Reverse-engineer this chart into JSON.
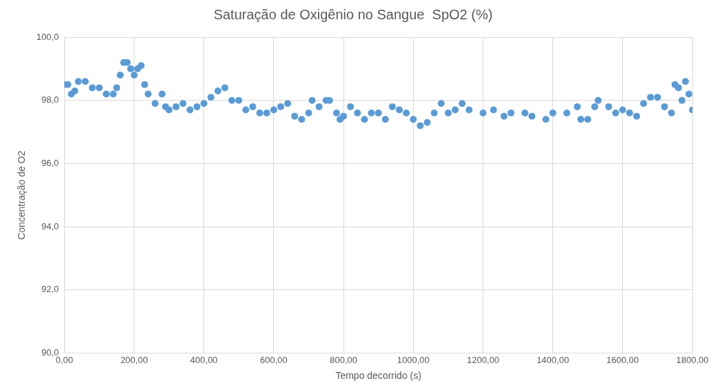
{
  "chart_data": {
    "type": "scatter",
    "title": "Saturação de Oxigênio no Sangue  SpO2 (%)",
    "xlabel": "Tempo decorrido (s)",
    "ylabel": "Concentração de O2",
    "x": [
      0,
      10,
      20,
      30,
      40,
      60,
      80,
      100,
      120,
      140,
      150,
      160,
      170,
      180,
      190,
      200,
      210,
      220,
      230,
      240,
      260,
      280,
      290,
      300,
      320,
      340,
      360,
      380,
      400,
      420,
      440,
      460,
      480,
      500,
      520,
      540,
      560,
      580,
      600,
      620,
      640,
      660,
      680,
      700,
      710,
      730,
      750,
      760,
      780,
      790,
      800,
      820,
      840,
      860,
      880,
      900,
      920,
      940,
      960,
      980,
      1000,
      1020,
      1040,
      1060,
      1080,
      1100,
      1120,
      1140,
      1160,
      1200,
      1230,
      1260,
      1280,
      1320,
      1340,
      1380,
      1400,
      1440,
      1470,
      1480,
      1500,
      1520,
      1530,
      1560,
      1580,
      1600,
      1620,
      1640,
      1660,
      1680,
      1700,
      1720,
      1740,
      1750,
      1760,
      1770,
      1780,
      1790,
      1800
    ],
    "series": [
      {
        "color": "#5b9bd5",
        "values": [
          98.5,
          98.5,
          98.2,
          98.3,
          98.6,
          98.6,
          98.4,
          98.4,
          98.2,
          98.2,
          98.4,
          98.8,
          99.2,
          99.2,
          99.0,
          98.8,
          99.0,
          99.1,
          98.5,
          98.2,
          97.9,
          98.2,
          97.8,
          97.7,
          97.8,
          97.9,
          97.7,
          97.8,
          97.9,
          98.1,
          98.3,
          98.4,
          98.0,
          98.0,
          97.7,
          97.8,
          97.6,
          97.6,
          97.7,
          97.8,
          97.9,
          97.5,
          97.4,
          97.6,
          98.0,
          97.8,
          98.0,
          98.0,
          97.6,
          97.4,
          97.5,
          97.8,
          97.6,
          97.4,
          97.6,
          97.6,
          97.4,
          97.8,
          97.7,
          97.6,
          97.4,
          97.2,
          97.3,
          97.6,
          97.9,
          97.6,
          97.7,
          97.9,
          97.7,
          97.6,
          97.7,
          97.5,
          97.6,
          97.6,
          97.5,
          97.4,
          97.6,
          97.6,
          97.8,
          97.4,
          97.4,
          97.8,
          98.0,
          97.8,
          97.6,
          97.7,
          97.6,
          97.5,
          97.9,
          98.1,
          98.1,
          97.8,
          97.6,
          98.5,
          98.4,
          98.0,
          98.6,
          98.2,
          97.7
        ]
      }
    ],
    "xlim": [
      0,
      1800
    ],
    "xticks": [
      {
        "value": 0,
        "label": "0,00"
      },
      {
        "value": 200,
        "label": "200,00"
      },
      {
        "value": 400,
        "label": "400,00"
      },
      {
        "value": 600,
        "label": "600,00"
      },
      {
        "value": 800,
        "label": "800,00"
      },
      {
        "value": 1000,
        "label": "1000,00"
      },
      {
        "value": 1200,
        "label": "1200,00"
      },
      {
        "value": 1400,
        "label": "1400,00"
      },
      {
        "value": 1600,
        "label": "1600,00"
      },
      {
        "value": 1800,
        "label": "1800,00"
      }
    ],
    "ylim": [
      90,
      100
    ],
    "yticks": [
      {
        "value": 90,
        "label": "90,0"
      },
      {
        "value": 92,
        "label": "92,0"
      },
      {
        "value": 94,
        "label": "94,0"
      },
      {
        "value": 96,
        "label": "96,0"
      },
      {
        "value": 98,
        "label": "98,0"
      },
      {
        "value": 100,
        "label": "100,0"
      }
    ],
    "grid": true,
    "legend": false,
    "marker": "circle"
  }
}
